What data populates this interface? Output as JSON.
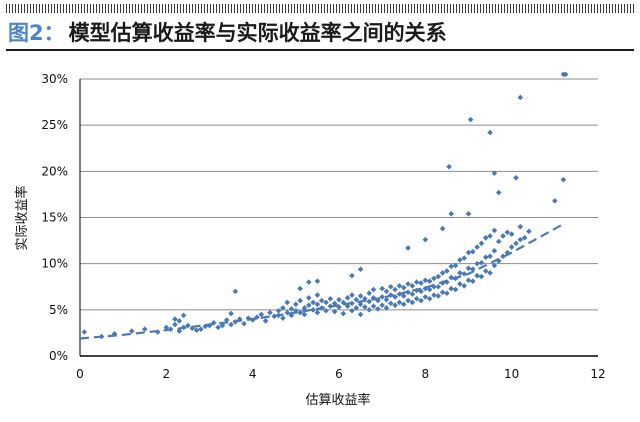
{
  "header": {
    "figure_label": "图2：",
    "title": "模型估算收益率与实际收益率之间的关系"
  },
  "chart_data": {
    "type": "scatter",
    "title": "模型估算收益率与实际收益率之间的关系",
    "xlabel": "估算收益率",
    "ylabel": "实际收益率",
    "xlim": [
      0,
      12
    ],
    "ylim": [
      0,
      0.3
    ],
    "x_ticks": [
      0,
      2,
      4,
      6,
      8,
      10,
      12
    ],
    "x_tick_labels": [
      "0",
      "2",
      "4",
      "6",
      "8",
      "10",
      "12"
    ],
    "y_ticks": [
      0,
      0.05,
      0.1,
      0.15,
      0.2,
      0.25,
      0.3
    ],
    "y_tick_labels": [
      "0%",
      "5%",
      "10%",
      "15%",
      "20%",
      "25%",
      "30%"
    ],
    "grid": {
      "horizontal": true,
      "vertical": false
    },
    "legend": "none",
    "colors": {
      "points": "#4a79b4",
      "trend": "#4a79b4",
      "grid": "#8c8c8c",
      "fig_label": "#4a86c4"
    },
    "series": [
      {
        "kind": "points",
        "x": [
          0.1,
          0.5,
          0.8,
          1.2,
          1.5,
          1.8,
          2.0,
          2.1,
          2.2,
          2.2,
          2.3,
          2.3,
          2.4,
          2.4,
          2.5,
          2.6,
          2.7,
          2.8,
          2.9,
          3.0,
          3.1,
          3.2,
          3.3,
          3.4,
          3.5,
          3.5,
          3.6,
          3.7,
          3.8,
          3.9,
          4.0,
          4.1,
          4.2,
          4.3,
          4.4,
          4.5,
          4.6,
          4.6,
          4.7,
          4.7,
          4.8,
          4.8,
          4.9,
          4.9,
          5.0,
          5.0,
          5.1,
          5.1,
          5.2,
          5.2,
          5.3,
          5.3,
          5.4,
          5.4,
          5.5,
          5.5,
          5.5,
          5.6,
          5.6,
          5.7,
          5.7,
          5.8,
          5.8,
          5.9,
          5.9,
          6.0,
          6.0,
          6.1,
          6.1,
          6.2,
          6.2,
          6.3,
          6.3,
          6.3,
          6.4,
          6.4,
          6.5,
          6.5,
          6.5,
          6.6,
          6.6,
          6.7,
          6.7,
          6.7,
          6.8,
          6.8,
          6.8,
          6.9,
          6.9,
          7.0,
          7.0,
          7.0,
          7.1,
          7.1,
          7.1,
          7.2,
          7.2,
          7.2,
          7.3,
          7.3,
          7.3,
          7.4,
          7.4,
          7.4,
          7.5,
          7.5,
          7.5,
          7.6,
          7.6,
          7.6,
          7.7,
          7.7,
          7.7,
          7.8,
          7.8,
          7.8,
          7.9,
          7.9,
          7.9,
          8.0,
          8.0,
          8.0,
          8.1,
          8.1,
          8.1,
          8.2,
          8.2,
          8.2,
          8.3,
          8.3,
          8.3,
          8.4,
          8.4,
          8.4,
          8.5,
          8.5,
          8.5,
          8.6,
          8.6,
          8.6,
          8.7,
          8.7,
          8.7,
          8.8,
          8.8,
          8.8,
          8.9,
          8.9,
          8.9,
          9.0,
          9.0,
          9.0,
          9.1,
          9.1,
          9.1,
          9.2,
          9.2,
          9.2,
          9.3,
          9.3,
          9.3,
          9.4,
          9.4,
          9.4,
          9.5,
          9.5,
          9.5,
          9.6,
          9.6,
          9.6,
          9.7,
          9.7,
          9.8,
          9.8,
          9.9,
          9.9,
          10.0,
          10.0,
          10.1,
          10.2,
          10.2,
          10.3,
          11.0,
          11.2,
          11.25,
          11.2,
          9.05,
          9.5,
          10.2,
          8.55,
          9.6,
          8.6,
          5.1,
          5.3,
          5.5,
          6.3,
          6.5,
          7.6,
          3.6,
          8.0,
          8.4,
          10.1,
          10.4,
          9.0,
          9.7
        ],
        "y": [
          0.026,
          0.021,
          0.024,
          0.027,
          0.029,
          0.026,
          0.031,
          0.029,
          0.034,
          0.04,
          0.027,
          0.038,
          0.031,
          0.044,
          0.033,
          0.03,
          0.028,
          0.029,
          0.032,
          0.033,
          0.036,
          0.031,
          0.033,
          0.039,
          0.034,
          0.046,
          0.037,
          0.04,
          0.035,
          0.041,
          0.039,
          0.042,
          0.045,
          0.038,
          0.047,
          0.043,
          0.044,
          0.049,
          0.041,
          0.052,
          0.047,
          0.058,
          0.044,
          0.051,
          0.049,
          0.056,
          0.047,
          0.06,
          0.052,
          0.045,
          0.055,
          0.063,
          0.05,
          0.058,
          0.047,
          0.056,
          0.066,
          0.052,
          0.06,
          0.049,
          0.058,
          0.054,
          0.062,
          0.048,
          0.057,
          0.053,
          0.061,
          0.046,
          0.058,
          0.054,
          0.063,
          0.049,
          0.057,
          0.066,
          0.052,
          0.061,
          0.045,
          0.056,
          0.065,
          0.053,
          0.062,
          0.05,
          0.059,
          0.068,
          0.054,
          0.063,
          0.072,
          0.051,
          0.06,
          0.055,
          0.064,
          0.073,
          0.052,
          0.061,
          0.07,
          0.057,
          0.066,
          0.075,
          0.055,
          0.064,
          0.072,
          0.058,
          0.067,
          0.076,
          0.056,
          0.065,
          0.074,
          0.06,
          0.069,
          0.078,
          0.058,
          0.067,
          0.076,
          0.062,
          0.071,
          0.08,
          0.06,
          0.07,
          0.079,
          0.064,
          0.073,
          0.082,
          0.062,
          0.072,
          0.081,
          0.066,
          0.075,
          0.084,
          0.065,
          0.075,
          0.086,
          0.069,
          0.079,
          0.09,
          0.068,
          0.08,
          0.092,
          0.073,
          0.085,
          0.097,
          0.072,
          0.084,
          0.098,
          0.078,
          0.09,
          0.104,
          0.076,
          0.089,
          0.106,
          0.082,
          0.095,
          0.112,
          0.081,
          0.094,
          0.113,
          0.087,
          0.1,
          0.118,
          0.086,
          0.101,
          0.122,
          0.092,
          0.107,
          0.128,
          0.09,
          0.108,
          0.13,
          0.098,
          0.114,
          0.136,
          0.103,
          0.124,
          0.108,
          0.13,
          0.112,
          0.134,
          0.118,
          0.132,
          0.122,
          0.126,
          0.14,
          0.128,
          0.168,
          0.305,
          0.305,
          0.191,
          0.256,
          0.242,
          0.28,
          0.205,
          0.198,
          0.154,
          0.073,
          0.08,
          0.081,
          0.087,
          0.094,
          0.117,
          0.07,
          0.126,
          0.138,
          0.193,
          0.135,
          0.154,
          0.177
        ]
      },
      {
        "kind": "trend",
        "style": "dashed",
        "x": [
          0.0,
          1.0,
          2.0,
          3.0,
          4.0,
          5.0,
          6.0,
          7.0,
          8.0,
          9.0,
          10.0,
          11.2
        ],
        "y": [
          0.019,
          0.023,
          0.028,
          0.034,
          0.04,
          0.047,
          0.055,
          0.063,
          0.074,
          0.089,
          0.112,
          0.143
        ]
      }
    ]
  }
}
